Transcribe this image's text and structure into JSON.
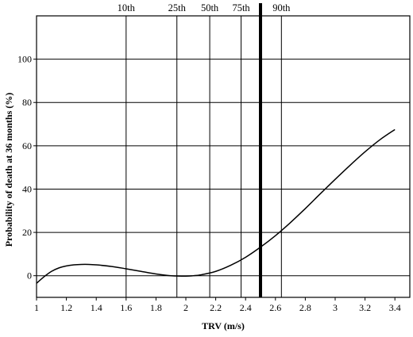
{
  "chart_data": {
    "type": "line",
    "title": "",
    "xlabel": "TRV (m/s)",
    "ylabel": "Probability of death at 36 months (%)",
    "xlim": [
      1,
      3.5
    ],
    "ylim": [
      -10,
      120
    ],
    "x_ticks": [
      1,
      1.2,
      1.4,
      1.6,
      1.8,
      2,
      2.2,
      2.4,
      2.6,
      2.8,
      3,
      3.2,
      3.4
    ],
    "x_tick_labels": [
      "1",
      "1.2",
      "1.4",
      "1.6",
      "1.8",
      "2",
      "2.2",
      "2.4",
      "2.6",
      "2.8",
      "3",
      "3.2",
      "3.4"
    ],
    "y_ticks": [
      0,
      20,
      40,
      60,
      80,
      100
    ],
    "y_tick_labels": [
      "0",
      "20",
      "40",
      "60",
      "80",
      "100"
    ],
    "grid": "horizontal",
    "percentiles": [
      {
        "label": "10th",
        "x": 1.6
      },
      {
        "label": "25th",
        "x": 1.94
      },
      {
        "label": "50th",
        "x": 2.16
      },
      {
        "label": "75th",
        "x": 2.37
      },
      {
        "label": "90th",
        "x": 2.64
      }
    ],
    "threshold_x": 2.5,
    "series": [
      {
        "x": [
          1.0,
          1.05,
          1.1,
          1.15,
          1.2,
          1.25,
          1.3,
          1.35,
          1.4,
          1.5,
          1.6,
          1.7,
          1.8,
          1.9,
          2.0,
          2.05,
          2.1,
          2.2,
          2.3,
          2.4,
          2.5,
          2.6,
          2.7,
          2.8,
          2.9,
          3.0,
          3.1,
          3.2,
          3.3,
          3.4
        ],
        "values": [
          -3.5,
          -0.5,
          2.0,
          3.6,
          4.5,
          5.0,
          5.2,
          5.2,
          5.0,
          4.3,
          3.2,
          2.0,
          0.8,
          0.0,
          -0.2,
          0.0,
          0.4,
          2.0,
          4.8,
          8.5,
          13.2,
          18.5,
          24.5,
          31.0,
          37.8,
          44.5,
          51.0,
          57.2,
          62.8,
          67.5
        ]
      }
    ]
  }
}
